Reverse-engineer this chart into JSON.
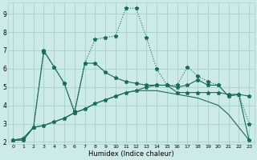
{
  "xlabel": "Humidex (Indice chaleur)",
  "background_color": "#cceae7",
  "grid_color": "#aad4d0",
  "line_color": "#1a6b5a",
  "x_values": [
    0,
    1,
    2,
    3,
    4,
    5,
    6,
    7,
    8,
    9,
    10,
    11,
    12,
    13,
    14,
    15,
    16,
    17,
    18,
    19,
    20,
    21,
    22,
    23
  ],
  "series_dotted": [
    2.1,
    2.2,
    2.8,
    6.9,
    6.1,
    5.2,
    3.7,
    6.3,
    7.6,
    7.7,
    7.8,
    9.3,
    9.3,
    7.7,
    6.0,
    5.1,
    5.1,
    6.1,
    5.6,
    5.3,
    5.1,
    4.5,
    4.6,
    3.0
  ],
  "series_solid_markers": [
    2.1,
    2.2,
    2.8,
    7.0,
    6.1,
    5.2,
    3.6,
    6.3,
    6.3,
    5.8,
    5.5,
    5.3,
    5.2,
    5.1,
    5.1,
    5.1,
    4.7,
    4.7,
    4.7,
    4.7,
    4.7,
    4.6,
    4.6,
    4.5
  ],
  "series_smooth": [
    2.1,
    2.1,
    2.8,
    2.9,
    3.1,
    3.3,
    3.6,
    3.8,
    4.1,
    4.3,
    4.5,
    4.7,
    4.8,
    4.8,
    4.8,
    4.7,
    4.6,
    4.5,
    4.4,
    4.2,
    4.0,
    3.5,
    2.8,
    2.1
  ],
  "series_solid2": [
    2.1,
    2.1,
    2.8,
    2.9,
    3.1,
    3.3,
    3.6,
    3.8,
    4.1,
    4.3,
    4.5,
    4.7,
    4.8,
    5.0,
    5.1,
    5.1,
    5.0,
    5.1,
    5.4,
    5.1,
    5.1,
    4.5,
    4.6,
    2.1
  ],
  "ylim": [
    1.9,
    9.6
  ],
  "yticks": [
    2,
    3,
    4,
    5,
    6,
    7,
    8,
    9
  ],
  "xticks": [
    0,
    1,
    2,
    3,
    4,
    5,
    6,
    7,
    8,
    9,
    10,
    11,
    12,
    13,
    14,
    15,
    16,
    17,
    18,
    19,
    20,
    21,
    22,
    23
  ]
}
